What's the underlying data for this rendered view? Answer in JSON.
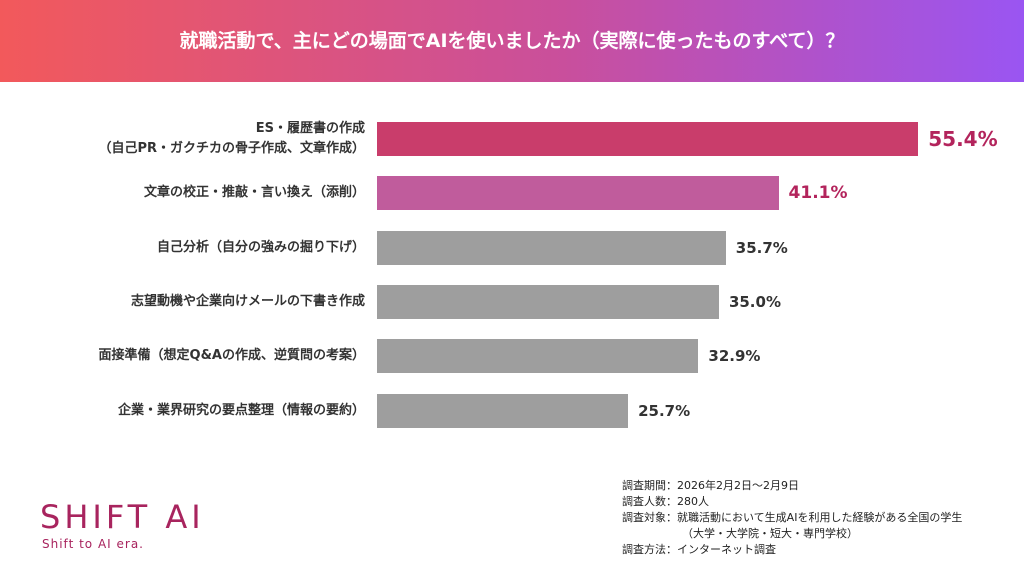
{
  "chart_data": {
    "type": "bar",
    "orientation": "horizontal",
    "title": "就職活動で、主にどの場面でAIを使いましたか（実際に使ったものすべて）？",
    "categories": [
      "ES・履歴書の作成\n（自己PR・ガクチカの骨子作成、文章作成）",
      "文章の校正・推敲・言い換え（添削）",
      "自己分析（自分の強みの掘り下げ）",
      "志望動機や企業向けメールの下書き作成",
      "面接準備（想定Q&Aの作成、逆質問の考案）",
      "企業・業界研究の要点整理（情報の要約）"
    ],
    "values": [
      55.4,
      41.1,
      35.7,
      35.0,
      32.9,
      25.7
    ],
    "value_labels": [
      "55.4%",
      "41.1%",
      "35.7%",
      "35.0%",
      "32.9%",
      "25.7%"
    ],
    "colors": [
      "#c93d6b",
      "#c05c9c",
      "#9e9e9e",
      "#9e9e9e",
      "#9e9e9e",
      "#9e9e9e"
    ],
    "label_colors": [
      "#b3245c",
      "#b3245c",
      "#333333",
      "#333333",
      "#333333",
      "#333333"
    ]
  },
  "notes": [
    "調査期間：2026年2月2日〜2月9日",
    "調査人数：280人",
    "調査対象：就職活動において生成AIを利用した経験がある全国の学生",
    "（大学・大学院・短大・専門学校）",
    "調査方法：インターネット調査"
  ],
  "logo": {
    "name": "SHIFT AI",
    "tagline": "Shift to AI era."
  }
}
